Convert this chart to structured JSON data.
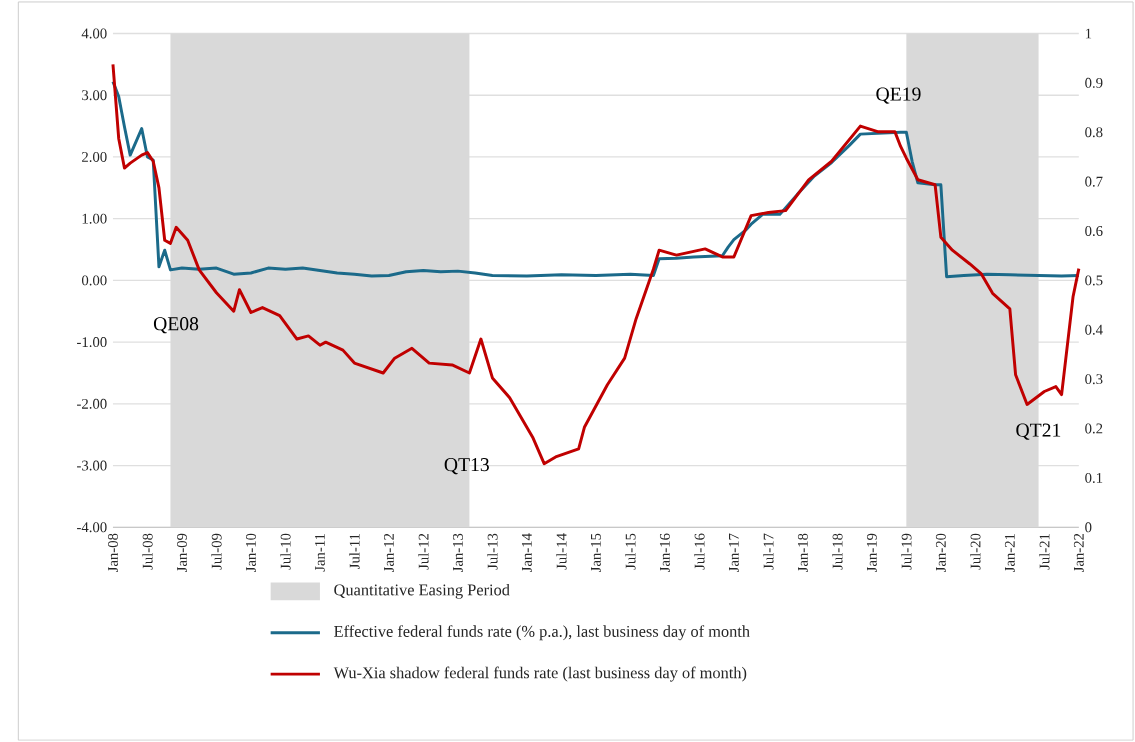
{
  "chart_data": {
    "type": "line",
    "xlim": [
      "2008-01",
      "2022-01"
    ],
    "ylim": [
      -4,
      4
    ],
    "y2lim": [
      0,
      1
    ],
    "xticks": [
      {
        "value": "2008-01",
        "label": "Jan-08"
      },
      {
        "value": "2008-07",
        "label": "Jul-08"
      },
      {
        "value": "2009-01",
        "label": "Jan-09"
      },
      {
        "value": "2009-07",
        "label": "Jul-09"
      },
      {
        "value": "2010-01",
        "label": "Jan-10"
      },
      {
        "value": "2010-07",
        "label": "Jul-10"
      },
      {
        "value": "2011-01",
        "label": "Jan-11"
      },
      {
        "value": "2011-07",
        "label": "Jul-11"
      },
      {
        "value": "2012-01",
        "label": "Jan-12"
      },
      {
        "value": "2012-07",
        "label": "Jul-12"
      },
      {
        "value": "2013-01",
        "label": "Jan-13"
      },
      {
        "value": "2013-07",
        "label": "Jul-13"
      },
      {
        "value": "2014-01",
        "label": "Jan-14"
      },
      {
        "value": "2014-07",
        "label": "Jul-14"
      },
      {
        "value": "2015-01",
        "label": "Jan-15"
      },
      {
        "value": "2015-07",
        "label": "Jul-15"
      },
      {
        "value": "2016-01",
        "label": "Jan-16"
      },
      {
        "value": "2016-07",
        "label": "Jul-16"
      },
      {
        "value": "2017-01",
        "label": "Jan-17"
      },
      {
        "value": "2017-07",
        "label": "Jul-17"
      },
      {
        "value": "2018-01",
        "label": "Jan-18"
      },
      {
        "value": "2018-07",
        "label": "Jul-18"
      },
      {
        "value": "2019-01",
        "label": "Jan-19"
      },
      {
        "value": "2019-07",
        "label": "Jul-19"
      },
      {
        "value": "2020-01",
        "label": "Jan-20"
      },
      {
        "value": "2020-07",
        "label": "Jul-20"
      },
      {
        "value": "2021-01",
        "label": "Jan-21"
      },
      {
        "value": "2021-07",
        "label": "Jul-21"
      },
      {
        "value": "2022-01",
        "label": "Jan-22"
      }
    ],
    "yticks": [
      {
        "value": -4,
        "label": "-4.00"
      },
      {
        "value": -3,
        "label": "-3.00"
      },
      {
        "value": -2,
        "label": "-2.00"
      },
      {
        "value": -1,
        "label": "-1.00"
      },
      {
        "value": 0,
        "label": "0.00"
      },
      {
        "value": 1,
        "label": "1.00"
      },
      {
        "value": 2,
        "label": "2.00"
      },
      {
        "value": 3,
        "label": "3.00"
      },
      {
        "value": 4,
        "label": "4.00"
      }
    ],
    "y2ticks": [
      0,
      0.1,
      0.2,
      0.3,
      0.4,
      0.5,
      0.6,
      0.7,
      0.8,
      0.9,
      1
    ],
    "grid": "y",
    "legend": "bottom",
    "bands": [
      {
        "axis": "x",
        "from": "2008-11",
        "to": "2013-03",
        "label": "Quantitative Easing Period",
        "color": "#d9d9d9"
      },
      {
        "axis": "x",
        "from": "2019-07",
        "to": "2021-06",
        "color": "#d9d9d9"
      }
    ],
    "series": [
      {
        "name": "Effective federal funds rate (% p.a.), last business day of month",
        "color": "#1b6a8a",
        "x": [
          "2008-01",
          "2008-02",
          "2008-03",
          "2008-04",
          "2008-06",
          "2008-07",
          "2008-08",
          "2008-09",
          "2008-10",
          "2008-11",
          "2009-01",
          "2009-04",
          "2009-07",
          "2009-10",
          "2010-01",
          "2010-04",
          "2010-07",
          "2010-10",
          "2011-01",
          "2011-04",
          "2011-07",
          "2011-10",
          "2012-01",
          "2012-04",
          "2012-07",
          "2012-10",
          "2013-01",
          "2013-04",
          "2013-07",
          "2014-01",
          "2014-07",
          "2015-01",
          "2015-07",
          "2015-11",
          "2015-12",
          "2016-03",
          "2016-06",
          "2016-11",
          "2016-12",
          "2017-01",
          "2017-03",
          "2017-04",
          "2017-06",
          "2017-09",
          "2017-12",
          "2018-03",
          "2018-06",
          "2018-09",
          "2018-11",
          "2019-06",
          "2019-07",
          "2019-08",
          "2019-09",
          "2019-12",
          "2020-01",
          "2020-02",
          "2020-05",
          "2020-09",
          "2021-01",
          "2021-06",
          "2021-10",
          "2022-01"
        ],
        "values": [
          3.22,
          2.98,
          2.49,
          2.03,
          2.46,
          2.0,
          1.95,
          0.22,
          0.49,
          0.17,
          0.2,
          0.18,
          0.2,
          0.1,
          0.12,
          0.2,
          0.18,
          0.2,
          0.16,
          0.12,
          0.1,
          0.07,
          0.08,
          0.14,
          0.16,
          0.14,
          0.15,
          0.12,
          0.08,
          0.07,
          0.09,
          0.08,
          0.1,
          0.08,
          0.35,
          0.36,
          0.38,
          0.4,
          0.54,
          0.66,
          0.81,
          0.91,
          1.07,
          1.07,
          1.39,
          1.69,
          1.91,
          2.18,
          2.37,
          2.4,
          2.4,
          1.93,
          1.58,
          1.55,
          1.55,
          0.06,
          0.08,
          0.1,
          0.09,
          0.08,
          0.07,
          0.08
        ]
      },
      {
        "name": "Wu-Xia shadow federal funds rate (last business day of month)",
        "color": "#c00000",
        "x": [
          "2008-01",
          "2008-02",
          "2008-03",
          "2008-04",
          "2008-06",
          "2008-07",
          "2008-08",
          "2008-09",
          "2008-10",
          "2008-11",
          "2008-12",
          "2009-02",
          "2009-04",
          "2009-07",
          "2009-10",
          "2009-11",
          "2010-01",
          "2010-03",
          "2010-06",
          "2010-09",
          "2010-11",
          "2011-01",
          "2011-02",
          "2011-05",
          "2011-07",
          "2011-12",
          "2012-02",
          "2012-05",
          "2012-08",
          "2012-12",
          "2013-03",
          "2013-05",
          "2013-07",
          "2013-10",
          "2014-02",
          "2014-04",
          "2014-06",
          "2014-10",
          "2014-11",
          "2015-03",
          "2015-06",
          "2015-08",
          "2015-11",
          "2015-12",
          "2016-03",
          "2016-08",
          "2016-11",
          "2017-01",
          "2017-04",
          "2017-07",
          "2017-10",
          "2018-02",
          "2018-06",
          "2018-11",
          "2019-02",
          "2019-05",
          "2019-06",
          "2019-07",
          "2019-09",
          "2019-12",
          "2020-01",
          "2020-03",
          "2020-06",
          "2020-08",
          "2020-10",
          "2021-01",
          "2021-02",
          "2021-04",
          "2021-07",
          "2021-09",
          "2021-10",
          "2021-12",
          "2022-01"
        ],
        "values": [
          3.5,
          2.3,
          1.82,
          1.9,
          2.03,
          2.07,
          1.93,
          1.5,
          0.65,
          0.6,
          0.86,
          0.65,
          0.17,
          -0.2,
          -0.5,
          -0.15,
          -0.52,
          -0.44,
          -0.57,
          -0.95,
          -0.9,
          -1.05,
          -1.0,
          -1.13,
          -1.34,
          -1.5,
          -1.26,
          -1.1,
          -1.34,
          -1.37,
          -1.5,
          -0.95,
          -1.58,
          -1.9,
          -2.54,
          -2.97,
          -2.86,
          -2.73,
          -2.38,
          -1.69,
          -1.26,
          -0.62,
          0.18,
          0.49,
          0.41,
          0.51,
          0.38,
          0.38,
          1.05,
          1.1,
          1.13,
          1.63,
          1.93,
          2.5,
          2.41,
          2.41,
          2.17,
          1.98,
          1.63,
          1.55,
          0.7,
          0.49,
          0.27,
          0.11,
          -0.21,
          -0.46,
          -1.53,
          -2.01,
          -1.8,
          -1.72,
          -1.85,
          -0.26,
          0.19
        ]
      }
    ],
    "annotations": [
      "QE08",
      "QT13",
      "QE19",
      "QT21"
    ]
  }
}
